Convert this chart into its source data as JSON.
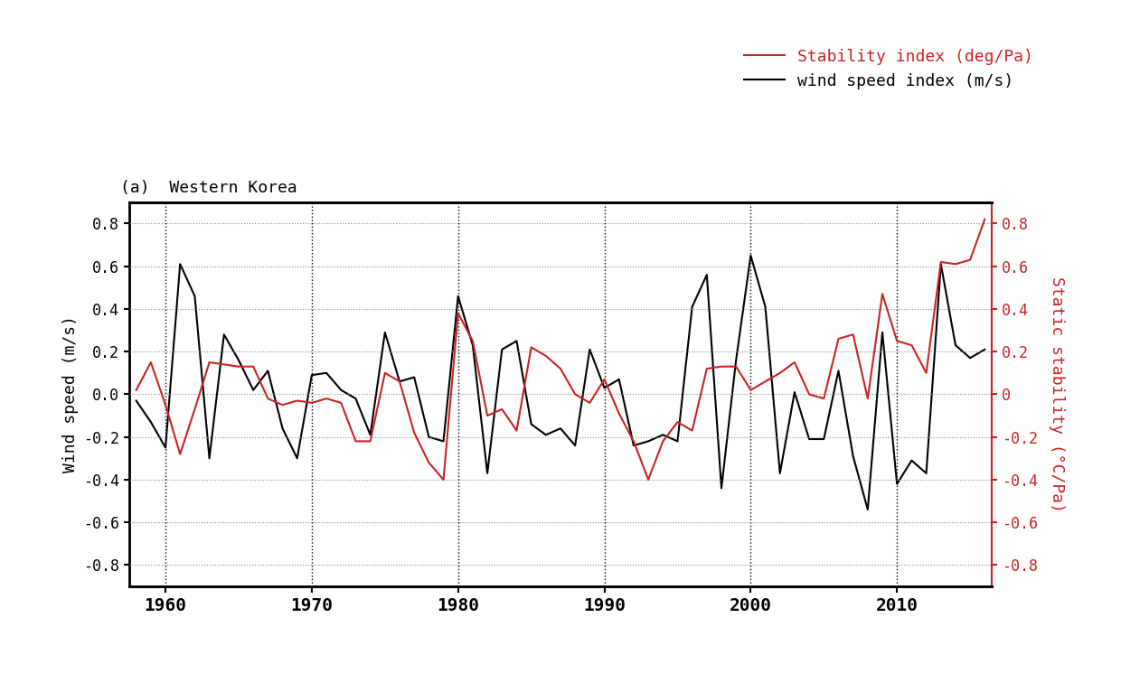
{
  "title": "(a)  Western Korea",
  "legend_stability": "Stability index (deg/Pa)",
  "legend_wind": "wind speed index (m/s)",
  "ylabel_left": "Wind speed (m/s)",
  "ylabel_right": "Static stability (°C/Pa)",
  "ylim": [
    -0.9,
    0.9
  ],
  "yticks": [
    -0.8,
    -0.6,
    -0.4,
    -0.2,
    0.0,
    0.2,
    0.4,
    0.6,
    0.8
  ],
  "xlim": [
    1957.5,
    2016.5
  ],
  "xticks": [
    1960,
    1970,
    1980,
    1990,
    2000,
    2010
  ],
  "vline_years": [
    1960,
    1970,
    1980,
    1990,
    2000,
    2010
  ],
  "background_color": "#ffffff",
  "wind_color": "#000000",
  "stability_color": "#cc2222",
  "years": [
    1958,
    1959,
    1960,
    1961,
    1962,
    1963,
    1964,
    1965,
    1966,
    1967,
    1968,
    1969,
    1970,
    1971,
    1972,
    1973,
    1974,
    1975,
    1976,
    1977,
    1978,
    1979,
    1980,
    1981,
    1982,
    1983,
    1984,
    1985,
    1986,
    1987,
    1988,
    1989,
    1990,
    1991,
    1992,
    1993,
    1994,
    1995,
    1996,
    1997,
    1998,
    1999,
    2000,
    2001,
    2002,
    2003,
    2004,
    2005,
    2006,
    2007,
    2008,
    2009,
    2010,
    2011,
    2012,
    2013,
    2014,
    2015,
    2016
  ],
  "wind_speed": [
    -0.03,
    -0.13,
    -0.25,
    0.61,
    0.46,
    -0.3,
    0.28,
    0.16,
    0.02,
    0.11,
    -0.16,
    -0.3,
    0.09,
    0.1,
    0.02,
    -0.02,
    -0.19,
    0.29,
    0.06,
    0.08,
    -0.2,
    -0.22,
    0.46,
    0.23,
    -0.37,
    0.21,
    0.25,
    -0.14,
    -0.19,
    -0.16,
    -0.24,
    0.21,
    0.03,
    0.07,
    -0.24,
    -0.22,
    -0.19,
    -0.22,
    0.41,
    0.56,
    -0.44,
    0.16,
    0.65,
    0.41,
    -0.37,
    0.01,
    -0.21,
    -0.21,
    0.11,
    -0.29,
    -0.54,
    0.29,
    -0.42,
    -0.31,
    -0.37,
    0.61,
    0.23,
    0.17,
    0.21
  ],
  "stability": [
    0.02,
    0.15,
    -0.05,
    -0.28,
    -0.07,
    0.15,
    0.14,
    0.13,
    0.13,
    -0.02,
    -0.05,
    -0.03,
    -0.04,
    -0.02,
    -0.04,
    -0.22,
    -0.22,
    0.1,
    0.06,
    -0.18,
    -0.32,
    -0.4,
    0.38,
    0.25,
    -0.1,
    -0.07,
    -0.17,
    0.22,
    0.18,
    0.12,
    0.0,
    -0.04,
    0.07,
    -0.09,
    -0.22,
    -0.4,
    -0.22,
    -0.13,
    -0.17,
    0.12,
    0.13,
    0.13,
    0.02,
    0.06,
    0.1,
    0.15,
    0.0,
    -0.02,
    0.26,
    0.28,
    -0.02,
    0.47,
    0.25,
    0.23,
    0.1,
    0.62,
    0.61,
    0.63,
    0.82
  ]
}
